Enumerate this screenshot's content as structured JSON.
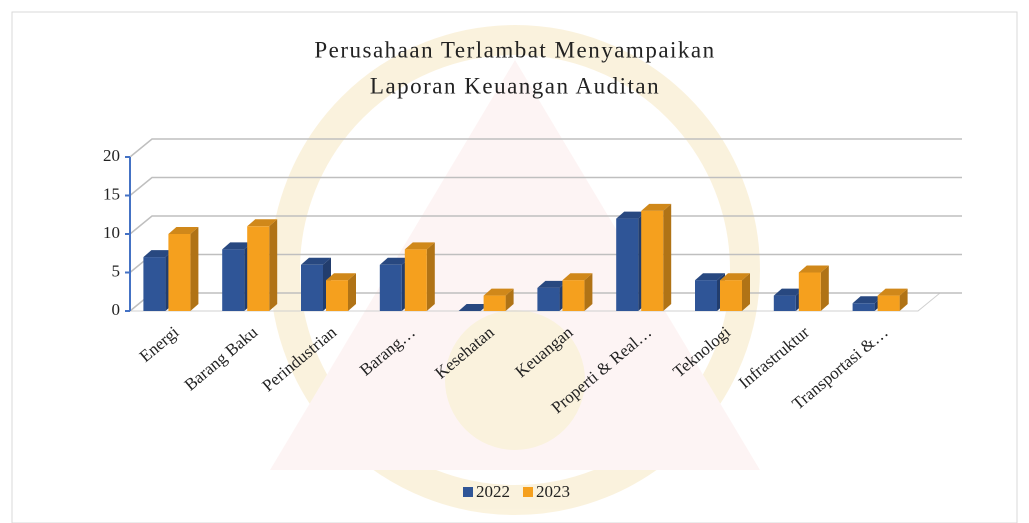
{
  "chart_data": {
    "type": "bar3d",
    "title": [
      "Perusahaan Terlambat Menyampaikan",
      "Laporan Keuangan Auditan"
    ],
    "categories": [
      "Energi",
      "Barang Baku",
      "Perindustrian",
      "Barang…",
      "Kesehatan",
      "Keuangan",
      "Properti & Real…",
      "Teknologi",
      "Infrastruktur",
      "Transportasi &…"
    ],
    "series": [
      {
        "name": "2022",
        "color": "#2f5597",
        "values": [
          7,
          8,
          6,
          6,
          0,
          3,
          12,
          4,
          2,
          1
        ]
      },
      {
        "name": "2023",
        "color": "#f5a01e",
        "values": [
          10,
          11,
          4,
          8,
          2,
          4,
          13,
          4,
          5,
          2
        ]
      }
    ],
    "ylim": [
      0,
      20
    ],
    "yticks": [
      0,
      5,
      10,
      15,
      20
    ],
    "grid": true,
    "legend": "bottom"
  }
}
